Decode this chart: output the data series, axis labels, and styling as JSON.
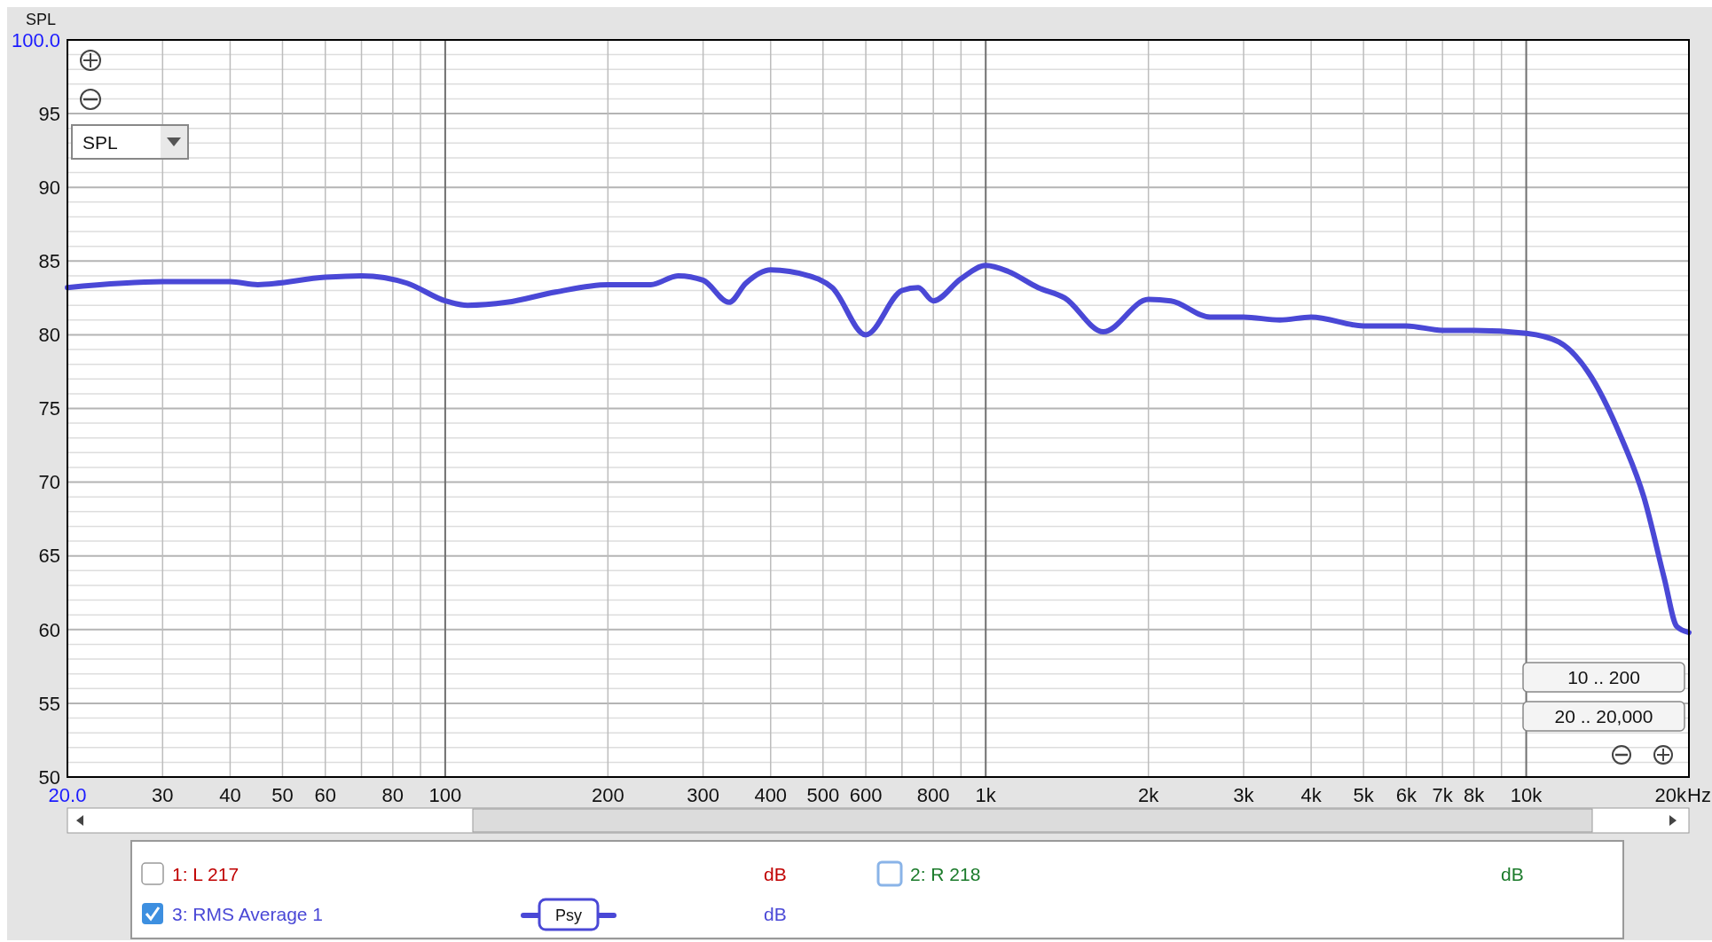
{
  "chart_data": {
    "type": "line",
    "ylabel": "SPL",
    "xlabel": "Hz",
    "log": "x",
    "grid": true,
    "legend": "bottom",
    "line_style": "solid",
    "marker": "none",
    "xlim": [
      20,
      20000
    ],
    "ylim": [
      50,
      100
    ],
    "xticks": [
      {
        "value": 20,
        "label": "20.0"
      },
      30,
      40,
      50,
      60,
      {
        "value": 70,
        "label": null
      },
      80,
      {
        "value": 90,
        "label": null
      },
      100,
      200,
      300,
      400,
      500,
      600,
      {
        "value": 700,
        "label": null
      },
      800,
      {
        "value": 900,
        "label": null
      },
      {
        "value": 1000,
        "label": "1k"
      },
      {
        "value": 2000,
        "label": "2k"
      },
      {
        "value": 3000,
        "label": "3k"
      },
      {
        "value": 4000,
        "label": "4k"
      },
      {
        "value": 5000,
        "label": "5k"
      },
      {
        "value": 6000,
        "label": "6k"
      },
      {
        "value": 7000,
        "label": "7k"
      },
      {
        "value": 8000,
        "label": "8k"
      },
      {
        "value": 9000,
        "label": null
      },
      {
        "value": 10000,
        "label": "10k"
      },
      {
        "value": 20000,
        "label": "20k"
      }
    ],
    "yticks": [
      50,
      {
        "value": 51,
        "label": null
      },
      {
        "value": 52,
        "label": null
      },
      {
        "value": 53,
        "label": null
      },
      {
        "value": 54,
        "label": null
      },
      55,
      {
        "value": 56,
        "label": null
      },
      {
        "value": 57,
        "label": null
      },
      {
        "value": 58,
        "label": null
      },
      {
        "value": 59,
        "label": null
      },
      60,
      {
        "value": 61,
        "label": null
      },
      {
        "value": 62,
        "label": null
      },
      {
        "value": 63,
        "label": null
      },
      {
        "value": 64,
        "label": null
      },
      65,
      {
        "value": 66,
        "label": null
      },
      {
        "value": 67,
        "label": null
      },
      {
        "value": 68,
        "label": null
      },
      {
        "value": 69,
        "label": null
      },
      70,
      {
        "value": 71,
        "label": null
      },
      {
        "value": 72,
        "label": null
      },
      {
        "value": 73,
        "label": null
      },
      {
        "value": 74,
        "label": null
      },
      75,
      {
        "value": 76,
        "label": null
      },
      {
        "value": 77,
        "label": null
      },
      {
        "value": 78,
        "label": null
      },
      {
        "value": 79,
        "label": null
      },
      80,
      {
        "value": 81,
        "label": null
      },
      {
        "value": 82,
        "label": null
      },
      {
        "value": 83,
        "label": null
      },
      {
        "value": 84,
        "label": null
      },
      85,
      {
        "value": 86,
        "label": null
      },
      {
        "value": 87,
        "label": null
      },
      {
        "value": 88,
        "label": null
      },
      {
        "value": 89,
        "label": null
      },
      90,
      {
        "value": 91,
        "label": null
      },
      {
        "value": 92,
        "label": null
      },
      {
        "value": 93,
        "label": null
      },
      {
        "value": 94,
        "label": null
      },
      95,
      {
        "value": 96,
        "label": null
      },
      {
        "value": 97,
        "label": null
      },
      {
        "value": 98,
        "label": null
      },
      {
        "value": 99,
        "label": null
      },
      {
        "value": 100,
        "label": "100.0"
      }
    ],
    "series": [
      {
        "name": "3: RMS Average 1",
        "color": "#4a48d6",
        "x": [
          20,
          30,
          40,
          45,
          60,
          70,
          85,
          100,
          110,
          130,
          160,
          200,
          240,
          270,
          300,
          335,
          360,
          400,
          470,
          520,
          600,
          700,
          750,
          800,
          900,
          1000,
          1100,
          1250,
          1400,
          1650,
          2000,
          2200,
          2600,
          3000,
          3500,
          4000,
          5000,
          6000,
          7000,
          8000,
          10000,
          11500,
          13000,
          15000,
          16500,
          18000,
          19000,
          20000
        ],
        "values": [
          83.2,
          83.6,
          83.6,
          83.4,
          83.9,
          84.0,
          83.5,
          82.3,
          82.0,
          82.2,
          82.9,
          83.4,
          83.4,
          84.0,
          83.7,
          82.2,
          83.5,
          84.4,
          84.0,
          83.2,
          80.0,
          83.0,
          83.2,
          82.3,
          83.8,
          84.7,
          84.3,
          83.2,
          82.5,
          80.2,
          82.4,
          82.3,
          81.2,
          81.2,
          81.0,
          81.2,
          80.6,
          80.6,
          80.3,
          80.3,
          80.1,
          79.5,
          77.5,
          73,
          69,
          63.5,
          60.2,
          59.8
        ]
      }
    ],
    "annotations": [
      "SPL",
      "10 .. 200",
      "20 .. 20,000",
      "1: L 217",
      "dB",
      "2: R 218",
      "dB",
      "dB",
      "Psy"
    ]
  }
}
